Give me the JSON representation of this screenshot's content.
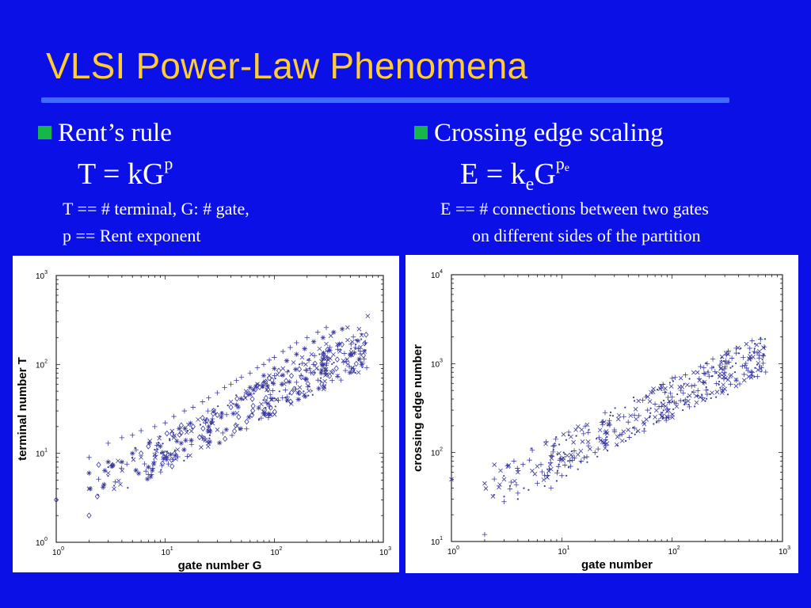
{
  "slide": {
    "title": "VLSI Power-Law Phenomena",
    "accent_color": "#ffcc33",
    "background_color": "#0a10e6",
    "bullet_color": "#17b64a"
  },
  "left": {
    "bullet": "Rent’s rule",
    "formula_lhs": "T = kG",
    "formula_exp": "p",
    "note_line1": "T == # terminal, G: # gate,",
    "note_line2": "p == Rent exponent"
  },
  "right": {
    "bullet": "Crossing edge scaling",
    "formula_lhs": "E = k",
    "formula_sub": "e",
    "formula_base": "G",
    "formula_exp": "p",
    "formula_exp_sub": "e",
    "note_line1": "E == # connections between two gates",
    "note_line2": "on different sides of the partition"
  },
  "chart_data": [
    {
      "type": "scatter",
      "title": "",
      "xlabel": "gate number G",
      "ylabel": "terminal number T",
      "xscale": "log",
      "yscale": "log",
      "xlim": [
        1,
        1000
      ],
      "ylim": [
        1,
        1000
      ],
      "xticks": [
        "10^0",
        "10^1",
        "10^2",
        "10^3"
      ],
      "yticks": [
        "10^0",
        "10^1",
        "10^2",
        "10^3"
      ],
      "markers": [
        "+",
        "x",
        "*",
        "diamond",
        "dot"
      ],
      "color": "#3a3aa0",
      "trend": {
        "k": 2.6,
        "p": 0.62
      },
      "series": [
        {
          "marker": "+",
          "points": [
            [
              2,
              9
            ],
            [
              3,
              13
            ],
            [
              4,
              15
            ],
            [
              5,
              16
            ],
            [
              6,
              18
            ],
            [
              8,
              20
            ],
            [
              10,
              22
            ],
            [
              12,
              26
            ],
            [
              15,
              30
            ],
            [
              18,
              33
            ],
            [
              22,
              38
            ],
            [
              25,
              42
            ],
            [
              30,
              48
            ],
            [
              35,
              55
            ],
            [
              40,
              60
            ],
            [
              45,
              66
            ],
            [
              50,
              72
            ],
            [
              60,
              80
            ],
            [
              70,
              92
            ],
            [
              80,
              100
            ],
            [
              90,
              112
            ],
            [
              100,
              120
            ],
            [
              120,
              140
            ],
            [
              140,
              155
            ],
            [
              160,
              175
            ],
            [
              200,
              200
            ],
            [
              250,
              230
            ],
            [
              300,
              260
            ]
          ]
        },
        {
          "marker": "x",
          "points": [
            [
              2,
              4
            ],
            [
              3,
              6
            ],
            [
              6,
              9
            ],
            [
              12,
              15
            ],
            [
              20,
              24
            ],
            [
              28,
              30
            ],
            [
              40,
              38
            ],
            [
              55,
              50
            ],
            [
              70,
              60
            ],
            [
              90,
              75
            ],
            [
              120,
              90
            ],
            [
              150,
              105
            ],
            [
              180,
              120
            ],
            [
              220,
              130
            ],
            [
              260,
              150
            ],
            [
              300,
              170
            ],
            [
              330,
              210
            ],
            [
              400,
              140
            ],
            [
              430,
              110
            ],
            [
              470,
              260
            ],
            [
              520,
              180
            ],
            [
              600,
              250
            ],
            [
              720,
              350
            ]
          ]
        },
        {
          "marker": "*",
          "points": [
            [
              2,
              6
            ],
            [
              3,
              8
            ],
            [
              4,
              8
            ],
            [
              5,
              10
            ],
            [
              7,
              7
            ],
            [
              9,
              12
            ],
            [
              14,
              13
            ],
            [
              25,
              20
            ],
            [
              45,
              35
            ],
            [
              60,
              55
            ],
            [
              80,
              75
            ],
            [
              100,
              90
            ],
            [
              130,
              110
            ],
            [
              160,
              130
            ],
            [
              190,
              150
            ],
            [
              230,
              180
            ],
            [
              280,
              200
            ],
            [
              350,
              230
            ],
            [
              420,
              250
            ]
          ]
        },
        {
          "marker": "diamond",
          "points": [
            [
              1,
              3
            ],
            [
              2,
              2
            ],
            [
              6,
              10
            ],
            [
              7,
              12
            ],
            [
              10,
              10
            ],
            [
              14,
              17
            ],
            [
              18,
              20
            ],
            [
              22,
              25
            ],
            [
              30,
              27
            ],
            [
              40,
              33
            ],
            [
              55,
              45
            ],
            [
              70,
              58
            ],
            [
              90,
              70
            ],
            [
              110,
              85
            ]
          ]
        },
        {
          "marker": "dot",
          "points": [
            [
              3,
              7
            ],
            [
              5,
              9
            ],
            [
              8,
              11
            ],
            [
              11,
              14
            ],
            [
              16,
              18
            ],
            [
              21,
              21
            ],
            [
              27,
              24
            ],
            [
              33,
              29
            ],
            [
              42,
              36
            ],
            [
              52,
              40
            ],
            [
              65,
              47
            ],
            [
              78,
              55
            ],
            [
              95,
              62
            ],
            [
              115,
              75
            ],
            [
              135,
              85
            ],
            [
              170,
              100
            ],
            [
              210,
              115
            ],
            [
              260,
              130
            ],
            [
              320,
              145
            ],
            [
              380,
              160
            ]
          ]
        }
      ]
    },
    {
      "type": "scatter",
      "title": "",
      "xlabel": "gate number",
      "ylabel": "crossing edge number",
      "xscale": "log",
      "yscale": "log",
      "xlim": [
        1,
        1000
      ],
      "ylim": [
        10,
        10000
      ],
      "xticks": [
        "10^0",
        "10^1",
        "10^2",
        "10^3"
      ],
      "yticks": [
        "10^1",
        "10^2",
        "10^3",
        "10^4"
      ],
      "markers": [
        "+",
        "x",
        "dot"
      ],
      "color": "#3a3aa0",
      "trend": {
        "k": 26,
        "p": 0.6
      },
      "series": [
        {
          "marker": "+",
          "points": [
            [
              2,
              12
            ],
            [
              3,
              28
            ],
            [
              4,
              35
            ],
            [
              6,
              45
            ],
            [
              8,
              40
            ],
            [
              10,
              55
            ],
            [
              12,
              70
            ],
            [
              15,
              80
            ],
            [
              20,
              100
            ],
            [
              25,
              140
            ],
            [
              30,
              180
            ],
            [
              35,
              160
            ],
            [
              40,
              220
            ],
            [
              50,
              260
            ],
            [
              60,
              300
            ],
            [
              70,
              350
            ],
            [
              80,
              330
            ],
            [
              100,
              420
            ],
            [
              120,
              500
            ],
            [
              150,
              560
            ]
          ]
        },
        {
          "marker": "x",
          "points": [
            [
              1,
              50
            ],
            [
              2,
              45
            ],
            [
              3,
              50
            ],
            [
              4,
              60
            ],
            [
              6,
              70
            ],
            [
              8,
              65
            ],
            [
              10,
              85
            ],
            [
              14,
              95
            ],
            [
              18,
              110
            ],
            [
              24,
              130
            ],
            [
              32,
              150
            ],
            [
              40,
              180
            ],
            [
              55,
              220
            ],
            [
              70,
              250
            ],
            [
              90,
              290
            ],
            [
              110,
              330
            ],
            [
              140,
              380
            ],
            [
              180,
              420
            ],
            [
              230,
              470
            ],
            [
              300,
              520
            ],
            [
              380,
              560
            ],
            [
              450,
              650
            ],
            [
              520,
              700
            ],
            [
              600,
              850
            ]
          ]
        },
        {
          "marker": "dot",
          "points": [
            [
              3,
              32
            ],
            [
              4,
              30
            ],
            [
              5,
              38
            ],
            [
              7,
              42
            ],
            [
              9,
              48
            ],
            [
              11,
              55
            ],
            [
              14,
              65
            ],
            [
              17,
              78
            ],
            [
              21,
              90
            ],
            [
              26,
              105
            ],
            [
              32,
              120
            ],
            [
              38,
              135
            ],
            [
              46,
              160
            ],
            [
              56,
              185
            ],
            [
              68,
              210
            ],
            [
              82,
              240
            ],
            [
              100,
              270
            ],
            [
              125,
              300
            ],
            [
              160,
              330
            ],
            [
              200,
              380
            ],
            [
              250,
              420
            ],
            [
              320,
              450
            ]
          ]
        }
      ]
    }
  ]
}
